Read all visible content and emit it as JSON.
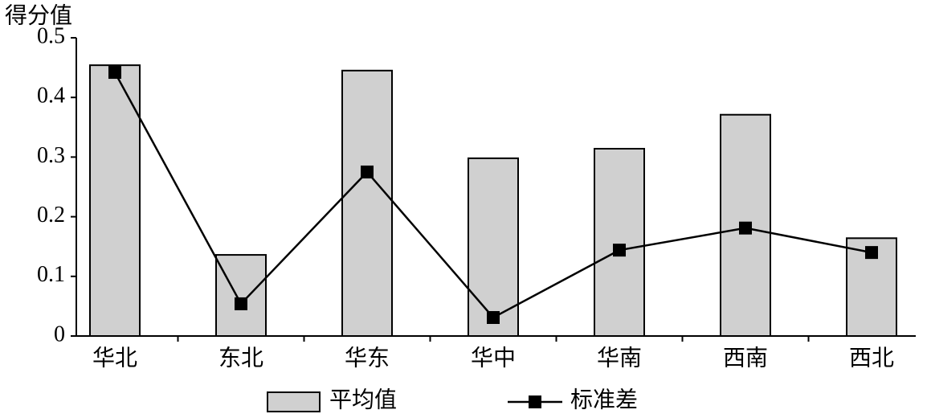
{
  "chart_data": {
    "type": "bar-line",
    "y_label": "得分值",
    "categories": [
      "华北",
      "东北",
      "华东",
      "华中",
      "华南",
      "西南",
      "西北"
    ],
    "series": [
      {
        "name": "平均值",
        "type": "bar",
        "color": "#d0d0d0",
        "values": [
          0.454,
          0.136,
          0.445,
          0.298,
          0.314,
          0.371,
          0.164
        ]
      },
      {
        "name": "标准差",
        "type": "line",
        "color": "#000000",
        "values": [
          0.442,
          0.054,
          0.275,
          0.031,
          0.144,
          0.181,
          0.14
        ]
      }
    ],
    "ylim": [
      0,
      0.5
    ],
    "yticks": [
      0,
      0.1,
      0.2,
      0.3,
      0.4,
      0.5
    ]
  }
}
